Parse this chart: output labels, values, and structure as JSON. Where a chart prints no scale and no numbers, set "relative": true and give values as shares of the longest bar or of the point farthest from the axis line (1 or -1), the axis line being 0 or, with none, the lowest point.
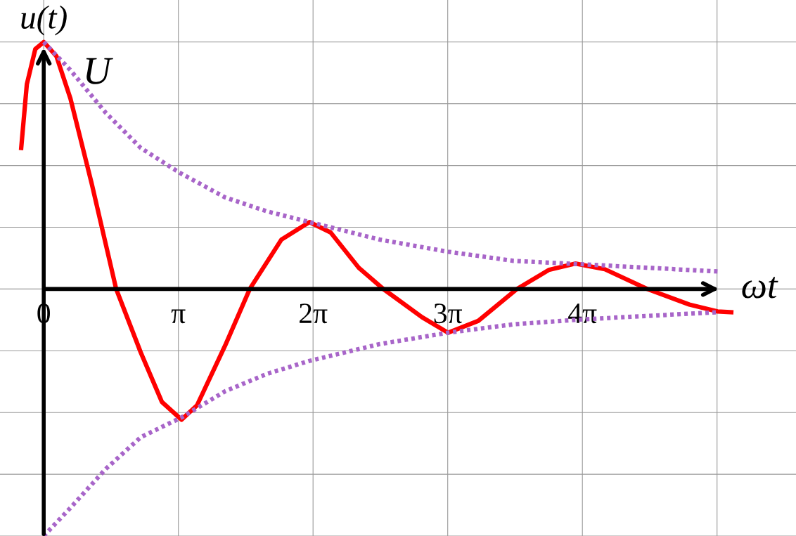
{
  "chart_data": {
    "type": "line",
    "relative": true,
    "xlabel": "ωt",
    "ylabel": "u(t)",
    "annotations": [
      {
        "text": "U",
        "x": 0,
        "y": 1
      }
    ],
    "xlim": [
      -1.02,
      17.55
    ],
    "xticks": [
      0,
      {
        "value": 3.1416,
        "label": "π"
      },
      {
        "value": 6.2832,
        "label": "2π"
      },
      {
        "value": 9.4248,
        "label": "3π"
      },
      {
        "value": 12.5664,
        "label": "4π"
      },
      {
        "value": 15.708,
        "label": null
      }
    ],
    "grid": true,
    "tick_labels": "x",
    "legend": false,
    "series": [
      {
        "color": "#ff0000",
        "line_style": "solid",
        "x": [
          -0.525,
          -0.394,
          -0.197,
          0,
          0.295,
          0.623,
          1.116,
          1.69,
          2.264,
          2.756,
          3.215,
          3.576,
          4.232,
          4.806,
          5.544,
          6.2,
          6.693,
          7.349,
          7.923,
          8.825,
          9.432,
          10.138,
          11.04,
          11.78,
          12.4,
          13.09,
          14.08,
          15.06,
          15.72,
          16.04
        ],
        "values": [
          0.571,
          0.829,
          0.971,
          1.0,
          0.943,
          0.771,
          0.429,
          0,
          -0.257,
          -0.457,
          -0.529,
          -0.471,
          -0.229,
          0,
          0.2,
          0.271,
          0.229,
          0.086,
          0,
          -0.114,
          -0.177,
          -0.129,
          0,
          0.077,
          0.103,
          0.08,
          0,
          -0.063,
          -0.091,
          -0.094
        ]
      },
      {
        "color": "#a865c9",
        "line_style": "dotted",
        "x": [
          0,
          0.623,
          1.444,
          2.264,
          3.166,
          4.232,
          5.216,
          6.2,
          7.84,
          9.43,
          10.96,
          12.57,
          14.08,
          15.72
        ],
        "values": [
          1.0,
          0.886,
          0.714,
          0.571,
          0.471,
          0.371,
          0.314,
          0.271,
          0.2,
          0.151,
          0.114,
          0.1,
          0.086,
          0.071
        ]
      },
      {
        "color": "#a865c9",
        "line_style": "dotted",
        "x": [
          0,
          0.623,
          1.444,
          2.264,
          3.215,
          4.232,
          5.216,
          6.2,
          7.84,
          9.43,
          10.96,
          12.57,
          14.08,
          15.72
        ],
        "values": [
          -1.0,
          -0.886,
          -0.729,
          -0.6,
          -0.52,
          -0.414,
          -0.343,
          -0.291,
          -0.223,
          -0.177,
          -0.143,
          -0.123,
          -0.109,
          -0.094
        ]
      }
    ]
  }
}
